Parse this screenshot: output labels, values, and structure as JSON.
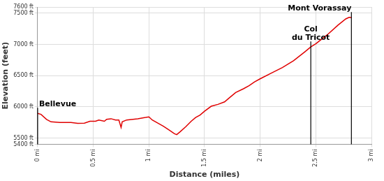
{
  "chart_data": {
    "type": "line",
    "x_label": "Distance (miles)",
    "y_label": "Elevation (feet)",
    "color": "#e00000",
    "grid": true,
    "x": [
      0,
      0.03,
      0.08,
      0.12,
      0.2,
      0.3,
      0.36,
      0.42,
      0.47,
      0.52,
      0.55,
      0.6,
      0.62,
      0.66,
      0.7,
      0.73,
      0.75,
      0.76,
      0.8,
      0.9,
      0.97,
      1.0,
      1.03,
      1.08,
      1.13,
      1.18,
      1.23,
      1.25,
      1.28,
      1.33,
      1.38,
      1.42,
      1.46,
      1.5,
      1.56,
      1.62,
      1.68,
      1.72,
      1.78,
      1.85,
      1.9,
      1.95,
      2.0,
      2.1,
      2.2,
      2.3,
      2.4,
      2.455,
      2.5,
      2.6,
      2.7,
      2.77,
      2.8,
      2.82
    ],
    "values": [
      5895,
      5880,
      5800,
      5760,
      5750,
      5750,
      5735,
      5740,
      5770,
      5770,
      5790,
      5770,
      5800,
      5810,
      5790,
      5790,
      5670,
      5760,
      5790,
      5810,
      5830,
      5840,
      5790,
      5740,
      5690,
      5630,
      5570,
      5555,
      5600,
      5680,
      5770,
      5830,
      5870,
      5930,
      6010,
      6040,
      6080,
      6140,
      6230,
      6290,
      6340,
      6400,
      6450,
      6540,
      6630,
      6740,
      6880,
      6960,
      7010,
      7150,
      7310,
      7410,
      7435,
      7430
    ],
    "xlim": [
      0,
      3
    ],
    "xticks": [
      {
        "value": 0,
        "label": "0 mi"
      },
      {
        "value": 0.5,
        "label": "0.5 mi"
      },
      {
        "value": 1,
        "label": "1 mi"
      },
      {
        "value": 1.5,
        "label": "1.5 mi"
      },
      {
        "value": 2,
        "label": "2 mi"
      },
      {
        "value": 2.5,
        "label": "2.5 mi"
      },
      {
        "value": 3,
        "label": "3 mi"
      }
    ],
    "ylim": [
      5400,
      7600
    ],
    "yticks": [
      {
        "value": 5400,
        "label": "5400 ft"
      },
      {
        "value": 5500,
        "label": "5500 ft"
      },
      {
        "value": 6000,
        "label": "6000 ft"
      },
      {
        "value": 6500,
        "label": "6500 ft"
      },
      {
        "value": 7000,
        "label": "7000 ft"
      },
      {
        "value": 7500,
        "label": "7500 ft"
      },
      {
        "value": 7600,
        "label": "7600 ft"
      }
    ],
    "annotations": [
      {
        "text": [
          "Bellevue"
        ],
        "x": 0,
        "y": 5895
      },
      {
        "text": [
          "Col",
          "du Tricot"
        ],
        "x": 2.455,
        "y": 6960
      },
      {
        "text": [
          "Mont Vorassay"
        ],
        "x": 2.82,
        "y": 7430
      }
    ]
  }
}
